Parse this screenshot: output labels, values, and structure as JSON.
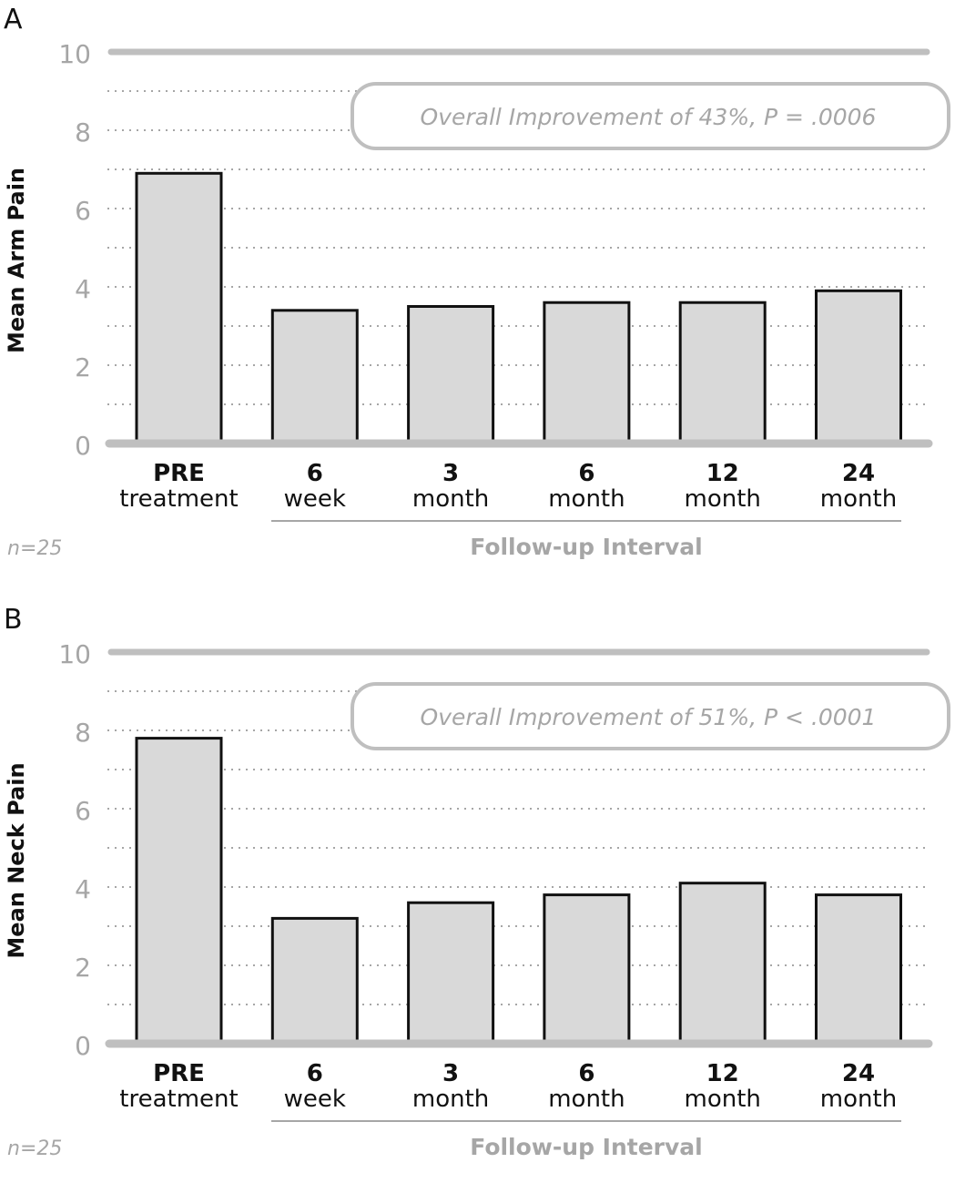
{
  "chart_data": [
    {
      "type": "bar",
      "panel_label": "A",
      "ylabel": "Mean Arm Pain",
      "xlabel": "Follow-up Interval",
      "ylim": [
        0,
        10
      ],
      "yticks": [
        "0",
        "2",
        "4",
        "6",
        "8",
        "10"
      ],
      "categories": [
        {
          "top": "PRE",
          "bottom": "treatment"
        },
        {
          "top": "6",
          "bottom": "week"
        },
        {
          "top": "3",
          "bottom": "month"
        },
        {
          "top": "6",
          "bottom": "month"
        },
        {
          "top": "12",
          "bottom": "month"
        },
        {
          "top": "24",
          "bottom": "month"
        }
      ],
      "values": [
        6.9,
        3.4,
        3.5,
        3.6,
        3.6,
        3.9
      ],
      "annotation": "Overall Improvement of 43%, P = .0006",
      "note": "n=25",
      "grid": "dotted, every 1 unit",
      "colors": {
        "bar_fill": "#d9d9d9",
        "bar_edge": "#111111",
        "axis": "#bfbfbf",
        "muted_text": "#a6a6a6"
      }
    },
    {
      "type": "bar",
      "panel_label": "B",
      "ylabel": "Mean Neck Pain",
      "xlabel": "Follow-up Interval",
      "ylim": [
        0,
        10
      ],
      "yticks": [
        "0",
        "2",
        "4",
        "6",
        "8",
        "10"
      ],
      "categories": [
        {
          "top": "PRE",
          "bottom": "treatment"
        },
        {
          "top": "6",
          "bottom": "week"
        },
        {
          "top": "3",
          "bottom": "month"
        },
        {
          "top": "6",
          "bottom": "month"
        },
        {
          "top": "12",
          "bottom": "month"
        },
        {
          "top": "24",
          "bottom": "month"
        }
      ],
      "values": [
        7.8,
        3.2,
        3.6,
        3.8,
        4.1,
        3.8
      ],
      "annotation": "Overall Improvement of 51%, P < .0001",
      "note": "n=25",
      "grid": "dotted, every 1 unit",
      "colors": {
        "bar_fill": "#d9d9d9",
        "bar_edge": "#111111",
        "axis": "#bfbfbf",
        "muted_text": "#a6a6a6"
      }
    }
  ]
}
